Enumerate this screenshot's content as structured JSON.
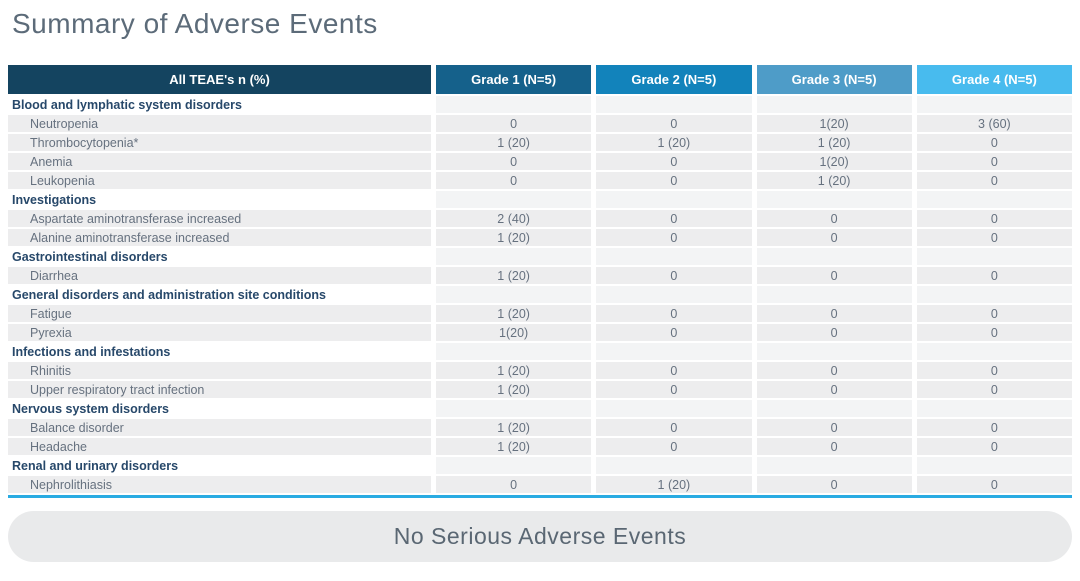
{
  "page": {
    "title": "Summary of Adverse Events",
    "footer_banner": "No Serious Adverse Events"
  },
  "colors": {
    "header_all_teae_bg": "#144460",
    "grade1_bg": "#15618b",
    "grade2_bg": "#1283bb",
    "grade3_bg": "#4e9cc8",
    "grade4_bg": "#48bbee",
    "item_row_bg": "#ededee",
    "category_text": "#27486a",
    "body_text": "#66717f",
    "title_text": "#5c6b79",
    "accent_line": "#29abe2",
    "banner_bg": "#e9eaeb"
  },
  "table": {
    "columns": [
      "All TEAE's n (%)",
      "Grade 1 (N=5)",
      "Grade 2 (N=5)",
      "Grade 3 (N=5)",
      "Grade 4 (N=5)"
    ],
    "sections": [
      {
        "category": "Blood and lymphatic system disorders",
        "rows": [
          {
            "label": "Neutropenia",
            "values": [
              "0",
              "0",
              "1(20)",
              "3 (60)"
            ]
          },
          {
            "label": "Thrombocytopenia*",
            "values": [
              "1 (20)",
              "1 (20)",
              "1 (20)",
              "0"
            ]
          },
          {
            "label": "Anemia",
            "values": [
              "0",
              "0",
              "1(20)",
              "0"
            ]
          },
          {
            "label": "Leukopenia",
            "values": [
              "0",
              "0",
              "1 (20)",
              "0"
            ]
          }
        ]
      },
      {
        "category": "Investigations",
        "rows": [
          {
            "label": "Aspartate aminotransferase increased",
            "values": [
              "2 (40)",
              "0",
              "0",
              "0"
            ]
          },
          {
            "label": "Alanine aminotransferase increased",
            "values": [
              "1 (20)",
              "0",
              "0",
              "0"
            ]
          }
        ]
      },
      {
        "category": "Gastrointestinal disorders",
        "rows": [
          {
            "label": "Diarrhea",
            "values": [
              "1 (20)",
              "0",
              "0",
              "0"
            ]
          }
        ]
      },
      {
        "category": "General disorders and administration site conditions",
        "rows": [
          {
            "label": "Fatigue",
            "values": [
              "1 (20)",
              "0",
              "0",
              "0"
            ]
          },
          {
            "label": "Pyrexia",
            "values": [
              "1(20)",
              "0",
              "0",
              "0"
            ]
          }
        ]
      },
      {
        "category": "Infections and infestations",
        "rows": [
          {
            "label": "Rhinitis",
            "values": [
              "1 (20)",
              "0",
              "0",
              "0"
            ]
          },
          {
            "label": "Upper respiratory tract infection",
            "values": [
              "1 (20)",
              "0",
              "0",
              "0"
            ]
          }
        ]
      },
      {
        "category": "Nervous system disorders",
        "rows": [
          {
            "label": "Balance disorder",
            "values": [
              "1 (20)",
              "0",
              "0",
              "0"
            ]
          },
          {
            "label": "Headache",
            "values": [
              "1 (20)",
              "0",
              "0",
              "0"
            ]
          }
        ]
      },
      {
        "category": "Renal and urinary disorders",
        "rows": [
          {
            "label": "Nephrolithiasis",
            "values": [
              "0",
              "1 (20)",
              "0",
              "0"
            ]
          }
        ]
      }
    ]
  }
}
